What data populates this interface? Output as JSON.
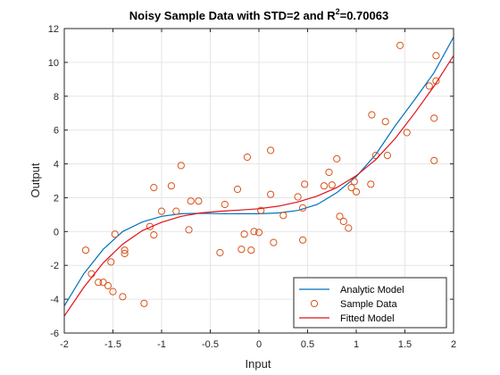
{
  "chart_data": {
    "type": "scatter",
    "title": {
      "main": "Noisy Sample Data with STD=2 and R",
      "superscript": "2",
      "value": "=0.70063"
    },
    "xlabel": "Input",
    "ylabel": "Output",
    "xlim": [
      -2,
      2
    ],
    "ylim": [
      -6,
      12
    ],
    "xticks": [
      -2,
      -1.5,
      -1,
      -0.5,
      0,
      0.5,
      1,
      1.5,
      2
    ],
    "xtick_labels": [
      "-2",
      "-1.5",
      "-1",
      "-0.5",
      "0",
      "0.5",
      "1",
      "1.5",
      "2"
    ],
    "yticks": [
      -6,
      -4,
      -2,
      0,
      2,
      4,
      6,
      8,
      10,
      12
    ],
    "ytick_labels": [
      "-6",
      "-4",
      "-2",
      "0",
      "2",
      "4",
      "6",
      "8",
      "10",
      "12"
    ],
    "grid": true,
    "legend_position": "bottom-right",
    "series": [
      {
        "name": "Analytic Model",
        "kind": "line",
        "color": "#0072BD",
        "x": [
          -2.0,
          -1.8,
          -1.6,
          -1.4,
          -1.2,
          -1.0,
          -0.8,
          -0.6,
          -0.4,
          -0.2,
          0.0,
          0.2,
          0.4,
          0.6,
          0.8,
          1.0,
          1.2,
          1.4,
          1.6,
          1.8,
          2.0
        ],
        "y": [
          -4.4,
          -2.5,
          -1.05,
          0.0,
          0.56,
          0.9,
          1.05,
          1.08,
          1.06,
          1.05,
          1.05,
          1.1,
          1.25,
          1.6,
          2.3,
          3.25,
          4.55,
          6.25,
          7.8,
          9.4,
          11.5
        ]
      },
      {
        "name": "Sample Data",
        "kind": "scatter",
        "color": "#D95319",
        "x": [
          -1.78,
          -1.72,
          -1.65,
          -1.6,
          -1.55,
          -1.52,
          -1.5,
          -1.48,
          -1.4,
          -1.38,
          -1.38,
          -1.18,
          -1.12,
          -1.08,
          -1.08,
          -1.0,
          -0.9,
          -0.85,
          -0.8,
          -0.72,
          -0.7,
          -0.62,
          -0.4,
          -0.35,
          -0.22,
          -0.18,
          -0.15,
          -0.12,
          -0.08,
          -0.05,
          0.0,
          0.02,
          0.12,
          0.12,
          0.15,
          0.25,
          0.4,
          0.45,
          0.45,
          0.47,
          0.67,
          0.72,
          0.75,
          0.8,
          0.83,
          0.87,
          0.92,
          0.95,
          0.98,
          1.0,
          1.15,
          1.16,
          1.2,
          1.3,
          1.32,
          1.45,
          1.52,
          1.75,
          1.8,
          1.8,
          1.82,
          1.82
        ],
        "y": [
          -1.1,
          -2.5,
          -3.0,
          -3.0,
          -3.2,
          -1.8,
          -3.55,
          -0.15,
          -3.85,
          -1.1,
          -1.3,
          -4.25,
          0.3,
          -0.2,
          2.6,
          1.2,
          2.7,
          1.2,
          3.9,
          0.1,
          1.8,
          1.8,
          -1.25,
          1.6,
          2.5,
          -1.05,
          -0.15,
          4.4,
          -1.1,
          0.0,
          -0.05,
          1.25,
          2.2,
          4.8,
          -0.65,
          0.95,
          2.05,
          1.4,
          -0.5,
          2.8,
          2.7,
          3.5,
          2.75,
          4.3,
          0.9,
          0.6,
          0.2,
          2.6,
          2.95,
          2.35,
          2.8,
          6.9,
          4.5,
          6.5,
          4.5,
          11.0,
          5.85,
          8.6,
          6.7,
          4.2,
          8.9,
          10.4
        ]
      },
      {
        "name": "Fitted Model",
        "kind": "line",
        "color": "#E0101B",
        "x": [
          -2.0,
          -1.8,
          -1.6,
          -1.4,
          -1.2,
          -1.0,
          -0.8,
          -0.6,
          -0.4,
          -0.2,
          0.0,
          0.2,
          0.4,
          0.6,
          0.8,
          1.0,
          1.2,
          1.4,
          1.6,
          1.8,
          2.0
        ],
        "y": [
          -5.0,
          -3.3,
          -1.85,
          -0.75,
          0.05,
          0.55,
          0.9,
          1.1,
          1.2,
          1.27,
          1.35,
          1.5,
          1.75,
          2.1,
          2.6,
          3.3,
          4.25,
          5.5,
          7.0,
          8.6,
          10.4
        ]
      }
    ]
  }
}
